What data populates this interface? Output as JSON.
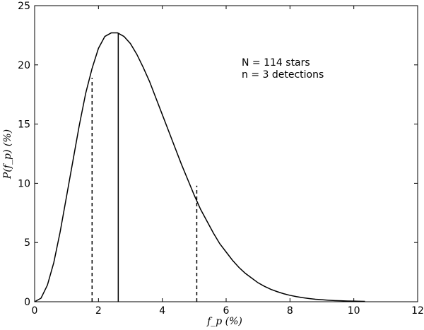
{
  "chart_data": {
    "type": "line",
    "title": "",
    "xlabel": "f_p (%)",
    "ylabel": "P(f_p) (%)",
    "xlim": [
      0,
      12
    ],
    "ylim": [
      0,
      25
    ],
    "x_ticks": [
      0,
      2,
      4,
      6,
      8,
      10,
      12
    ],
    "y_ticks": [
      0,
      5,
      10,
      15,
      20,
      25
    ],
    "x_tick_labels": [
      "0",
      "2",
      "4",
      "6",
      "8",
      "10",
      "12"
    ],
    "y_tick_labels": [
      "0",
      "5",
      "10",
      "15",
      "20",
      "25"
    ],
    "grid": false,
    "series": [
      {
        "style": "solid",
        "color": "#000000",
        "x": [
          0.0,
          0.2,
          0.4,
          0.6,
          0.8,
          1.0,
          1.2,
          1.4,
          1.6,
          1.8,
          2.0,
          2.2,
          2.4,
          2.6,
          2.8,
          3.0,
          3.2,
          3.4,
          3.6,
          3.8,
          4.0,
          4.2,
          4.4,
          4.6,
          4.8,
          5.0,
          5.2,
          5.4,
          5.6,
          5.8,
          6.0,
          6.2,
          6.4,
          6.6,
          6.8,
          7.0,
          7.2,
          7.4,
          7.6,
          7.8,
          8.0,
          8.2,
          8.4,
          8.6,
          8.8,
          9.0,
          9.2,
          9.4,
          9.6,
          9.8,
          10.0,
          10.2,
          10.35
        ],
        "y": [
          0.0,
          0.3,
          1.4,
          3.3,
          5.9,
          8.9,
          11.9,
          14.9,
          17.6,
          19.7,
          21.4,
          22.4,
          22.7,
          22.7,
          22.4,
          21.8,
          20.9,
          19.8,
          18.6,
          17.2,
          15.8,
          14.4,
          13.0,
          11.6,
          10.3,
          9.0,
          7.8,
          6.8,
          5.8,
          4.9,
          4.2,
          3.5,
          2.9,
          2.4,
          2.0,
          1.6,
          1.3,
          1.05,
          0.85,
          0.68,
          0.54,
          0.43,
          0.34,
          0.27,
          0.21,
          0.17,
          0.13,
          0.1,
          0.08,
          0.06,
          0.05,
          0.04,
          0.03
        ]
      }
    ],
    "vertical_lines": [
      {
        "x": 2.62,
        "y_top": 22.7,
        "style": "solid"
      },
      {
        "x": 1.8,
        "y_top": 18.9,
        "style": "dashed"
      },
      {
        "x": 5.08,
        "y_top": 9.8,
        "style": "dashed"
      }
    ],
    "annotations": [
      "N = 114 stars",
      "n = 3 detections"
    ]
  }
}
